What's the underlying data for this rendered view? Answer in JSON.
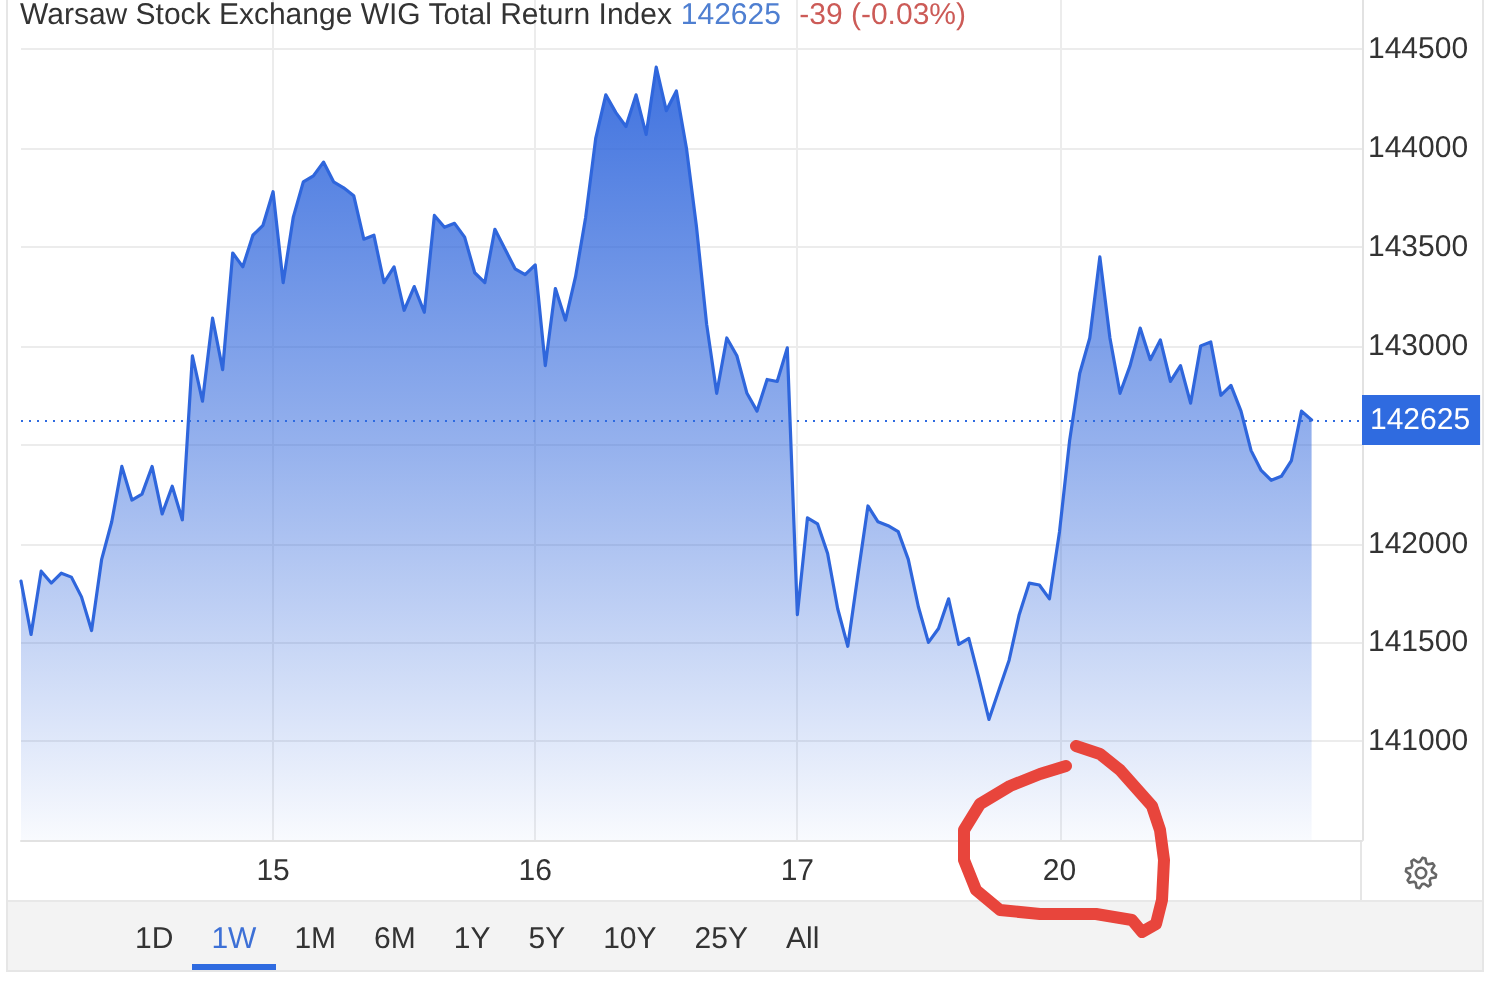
{
  "chart_data": {
    "type": "area",
    "title": "Warsaw Stock Exchange WIG Total Return Index",
    "annotations": [
      "142625",
      "-39 (-0.03%)",
      "1D",
      "1W",
      "1M",
      "6M",
      "1Y",
      "5Y",
      "10Y",
      "25Y",
      "All"
    ],
    "categories": [
      null,
      null,
      null,
      null,
      null,
      null,
      null,
      null,
      null,
      null,
      null,
      null,
      null,
      null,
      null,
      null,
      null,
      null,
      null,
      null,
      null,
      null,
      null,
      null,
      null,
      "15",
      null,
      null,
      null,
      null,
      null,
      null,
      null,
      null,
      null,
      null,
      null,
      null,
      null,
      null,
      null,
      null,
      null,
      null,
      null,
      null,
      null,
      null,
      null,
      null,
      null,
      "16",
      null,
      null,
      null,
      null,
      null,
      null,
      null,
      null,
      null,
      null,
      null,
      null,
      null,
      null,
      null,
      null,
      null,
      null,
      null,
      null,
      null,
      null,
      null,
      null,
      null,
      "17",
      null,
      null,
      null,
      null,
      null,
      null,
      null,
      null,
      null,
      null,
      null,
      null,
      null,
      null,
      null,
      null,
      null,
      null,
      null,
      null,
      null,
      null,
      null,
      null,
      null,
      "20",
      null,
      null,
      null,
      null,
      null,
      null,
      null,
      null,
      null,
      null,
      null,
      null,
      null,
      null,
      null,
      null,
      null,
      null,
      null,
      null,
      null,
      null,
      null,
      null,
      null,
      null,
      null,
      null,
      null,
      null
    ],
    "values": [
      141810,
      141540,
      141860,
      141800,
      141850,
      141830,
      141730,
      141560,
      141920,
      142110,
      142390,
      142220,
      142250,
      142390,
      142150,
      142290,
      142120,
      142950,
      142720,
      143140,
      142880,
      143470,
      143400,
      143560,
      143610,
      143780,
      143320,
      143650,
      143830,
      143860,
      143930,
      143830,
      143800,
      143760,
      143540,
      143560,
      143320,
      143400,
      143180,
      143300,
      143170,
      143660,
      143600,
      143620,
      143550,
      143370,
      143320,
      143590,
      143490,
      143390,
      143360,
      143410,
      142900,
      143290,
      143130,
      143350,
      143650,
      144050,
      144270,
      144180,
      144110,
      144270,
      144070,
      144410,
      144190,
      144290,
      144000,
      143600,
      143110,
      142760,
      143040,
      142950,
      142760,
      142670,
      142830,
      142820,
      142990,
      141640,
      142130,
      142100,
      141950,
      141670,
      141480,
      141840,
      142190,
      142110,
      142090,
      142060,
      141920,
      141680,
      141500,
      141570,
      141720,
      141490,
      141520,
      141320,
      141110,
      141260,
      141410,
      141640,
      141800,
      141790,
      141720,
      142060,
      142520,
      142860,
      143040,
      143450,
      143040,
      142760,
      142900,
      143090,
      142930,
      143030,
      142820,
      142900,
      142710,
      143000,
      143020,
      142750,
      142800,
      142670,
      142470,
      142370,
      142320,
      142340,
      142420,
      142670,
      142625,
      null,
      null,
      null,
      null,
      null
    ],
    "color": "#2f66dc",
    "ylim": [
      140500,
      144750
    ],
    "yticks": [
      141000,
      141500,
      142000,
      {
        "value": 142500,
        "label": null
      },
      143000,
      143500,
      144000,
      144500
    ],
    "grid": true,
    "ref_lines": [
      {
        "axis": "y",
        "value": 142625,
        "label": "142625",
        "color": "#2f6be0",
        "line_style": "dotted"
      }
    ]
  }
}
